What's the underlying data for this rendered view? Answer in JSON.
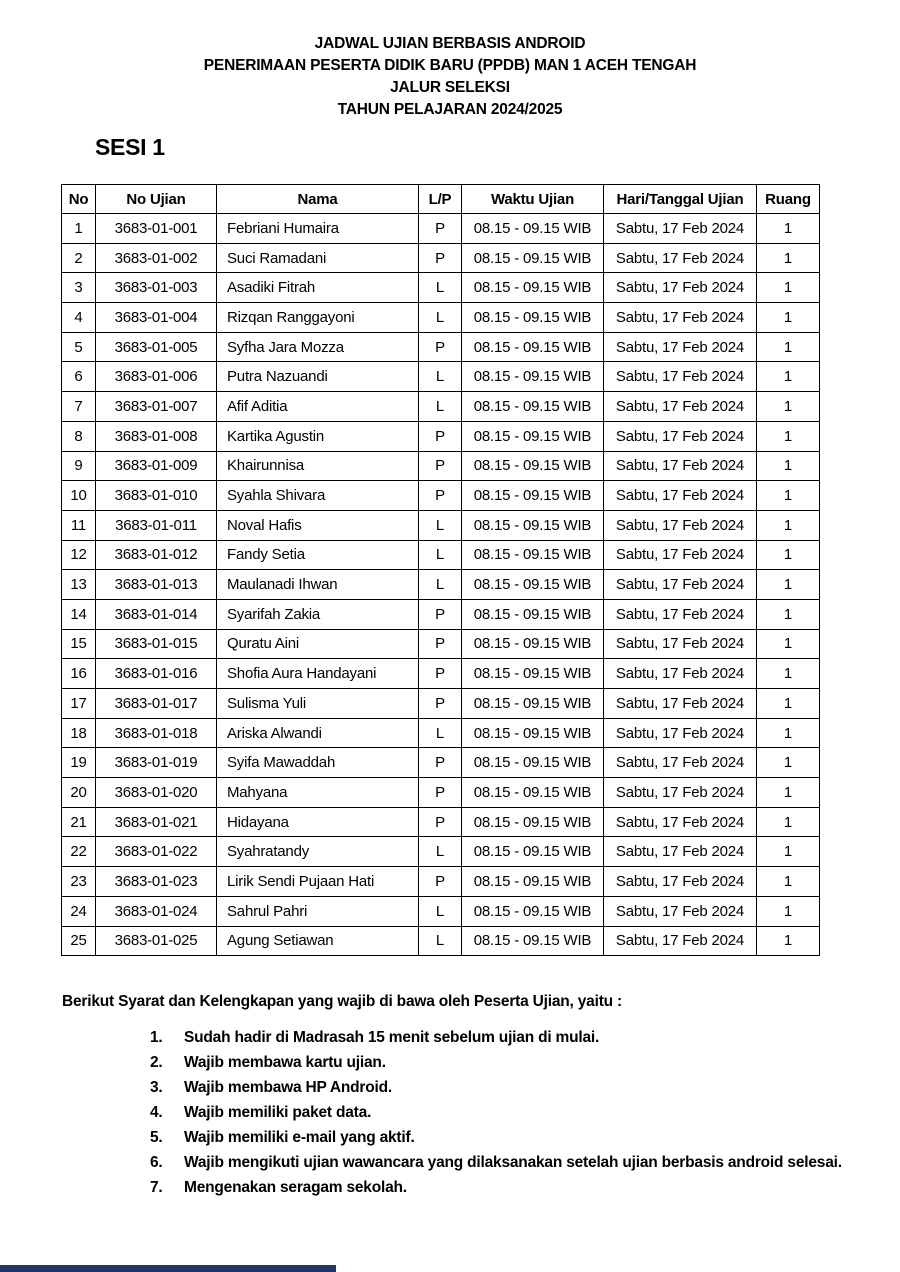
{
  "document": {
    "title_lines": [
      "JADWAL UJIAN BERBASIS ANDROID",
      "PENERIMAAN PESERTA DIDIK BARU (PPDB) MAN 1 ACEH TENGAH",
      "JALUR SELEKSI",
      "TAHUN PELAJARAN 2024/2025"
    ],
    "session_label": "SESI 1"
  },
  "table": {
    "columns": [
      "No",
      "No Ujian",
      "Nama",
      "L/P",
      "Waktu Ujian",
      "Hari/Tanggal Ujian",
      "Ruang"
    ],
    "rows": [
      [
        "1",
        "3683-01-001",
        "Febriani Humaira",
        "P",
        "08.15 - 09.15 WIB",
        "Sabtu, 17 Feb 2024",
        "1"
      ],
      [
        "2",
        "3683-01-002",
        "Suci Ramadani",
        "P",
        "08.15 - 09.15 WIB",
        "Sabtu, 17 Feb 2024",
        "1"
      ],
      [
        "3",
        "3683-01-003",
        "Asadiki Fitrah",
        "L",
        "08.15 - 09.15 WIB",
        "Sabtu, 17 Feb 2024",
        "1"
      ],
      [
        "4",
        "3683-01-004",
        "Rizqan Ranggayoni",
        "L",
        "08.15 - 09.15 WIB",
        "Sabtu, 17 Feb 2024",
        "1"
      ],
      [
        "5",
        "3683-01-005",
        "Syfha Jara Mozza",
        "P",
        "08.15 - 09.15 WIB",
        "Sabtu, 17 Feb 2024",
        "1"
      ],
      [
        "6",
        "3683-01-006",
        "Putra Nazuandi",
        "L",
        "08.15 - 09.15 WIB",
        "Sabtu, 17 Feb 2024",
        "1"
      ],
      [
        "7",
        "3683-01-007",
        "Afif Aditia",
        "L",
        "08.15 - 09.15 WIB",
        "Sabtu, 17 Feb 2024",
        "1"
      ],
      [
        "8",
        "3683-01-008",
        "Kartika Agustin",
        "P",
        "08.15 - 09.15 WIB",
        "Sabtu, 17 Feb 2024",
        "1"
      ],
      [
        "9",
        "3683-01-009",
        "Khairunnisa",
        "P",
        "08.15 - 09.15 WIB",
        "Sabtu, 17 Feb 2024",
        "1"
      ],
      [
        "10",
        "3683-01-010",
        "Syahla Shivara",
        "P",
        "08.15 - 09.15 WIB",
        "Sabtu, 17 Feb 2024",
        "1"
      ],
      [
        "11",
        "3683-01-011",
        "Noval Hafis",
        "L",
        "08.15 - 09.15 WIB",
        "Sabtu, 17 Feb 2024",
        "1"
      ],
      [
        "12",
        "3683-01-012",
        "Fandy Setia",
        "L",
        "08.15 - 09.15 WIB",
        "Sabtu, 17 Feb 2024",
        "1"
      ],
      [
        "13",
        "3683-01-013",
        "Maulanadi Ihwan",
        "L",
        "08.15 - 09.15 WIB",
        "Sabtu, 17 Feb 2024",
        "1"
      ],
      [
        "14",
        "3683-01-014",
        "Syarifah Zakia",
        "P",
        "08.15 - 09.15 WIB",
        "Sabtu, 17 Feb 2024",
        "1"
      ],
      [
        "15",
        "3683-01-015",
        "Quratu Aini",
        "P",
        "08.15 - 09.15 WIB",
        "Sabtu, 17 Feb 2024",
        "1"
      ],
      [
        "16",
        "3683-01-016",
        "Shofia Aura Handayani",
        "P",
        "08.15 - 09.15 WIB",
        "Sabtu, 17 Feb 2024",
        "1"
      ],
      [
        "17",
        "3683-01-017",
        "Sulisma Yuli",
        "P",
        "08.15 - 09.15 WIB",
        "Sabtu, 17 Feb 2024",
        "1"
      ],
      [
        "18",
        "3683-01-018",
        "Ariska Alwandi",
        "L",
        "08.15 - 09.15 WIB",
        "Sabtu, 17 Feb 2024",
        "1"
      ],
      [
        "19",
        "3683-01-019",
        "Syifa Mawaddah",
        "P",
        "08.15 - 09.15 WIB",
        "Sabtu, 17 Feb 2024",
        "1"
      ],
      [
        "20",
        "3683-01-020",
        "Mahyana",
        "P",
        "08.15 - 09.15 WIB",
        "Sabtu, 17 Feb 2024",
        "1"
      ],
      [
        "21",
        "3683-01-021",
        "Hidayana",
        "P",
        "08.15 - 09.15 WIB",
        "Sabtu, 17 Feb 2024",
        "1"
      ],
      [
        "22",
        "3683-01-022",
        "Syahratandy",
        "L",
        "08.15 - 09.15 WIB",
        "Sabtu, 17 Feb 2024",
        "1"
      ],
      [
        "23",
        "3683-01-023",
        "Lirik Sendi Pujaan Hati",
        "P",
        "08.15 - 09.15 WIB",
        "Sabtu, 17 Feb 2024",
        "1"
      ],
      [
        "24",
        "3683-01-024",
        "Sahrul Pahri",
        "L",
        "08.15 - 09.15 WIB",
        "Sabtu, 17 Feb 2024",
        "1"
      ],
      [
        "25",
        "3683-01-025",
        "Agung Setiawan",
        "L",
        "08.15 - 09.15 WIB",
        "Sabtu, 17 Feb 2024",
        "1"
      ]
    ]
  },
  "requirements": {
    "heading": "Berikut Syarat dan Kelengkapan yang wajib di bawa oleh Peserta Ujian, yaitu :",
    "items": [
      "Sudah hadir di Madrasah 15 menit sebelum ujian di mulai.",
      "Wajib membawa kartu ujian.",
      "Wajib membawa HP Android.",
      "Wajib memiliki paket data.",
      "Wajib memiliki e-mail yang aktif.",
      "Wajib mengikuti ujian wawancara yang dilaksanakan setelah ujian berbasis android selesai.",
      "Mengenakan seragam sekolah."
    ]
  },
  "colors": {
    "text": "#000000",
    "table_border": "#000000",
    "bottom_accent_bar": "#1F3864"
  }
}
